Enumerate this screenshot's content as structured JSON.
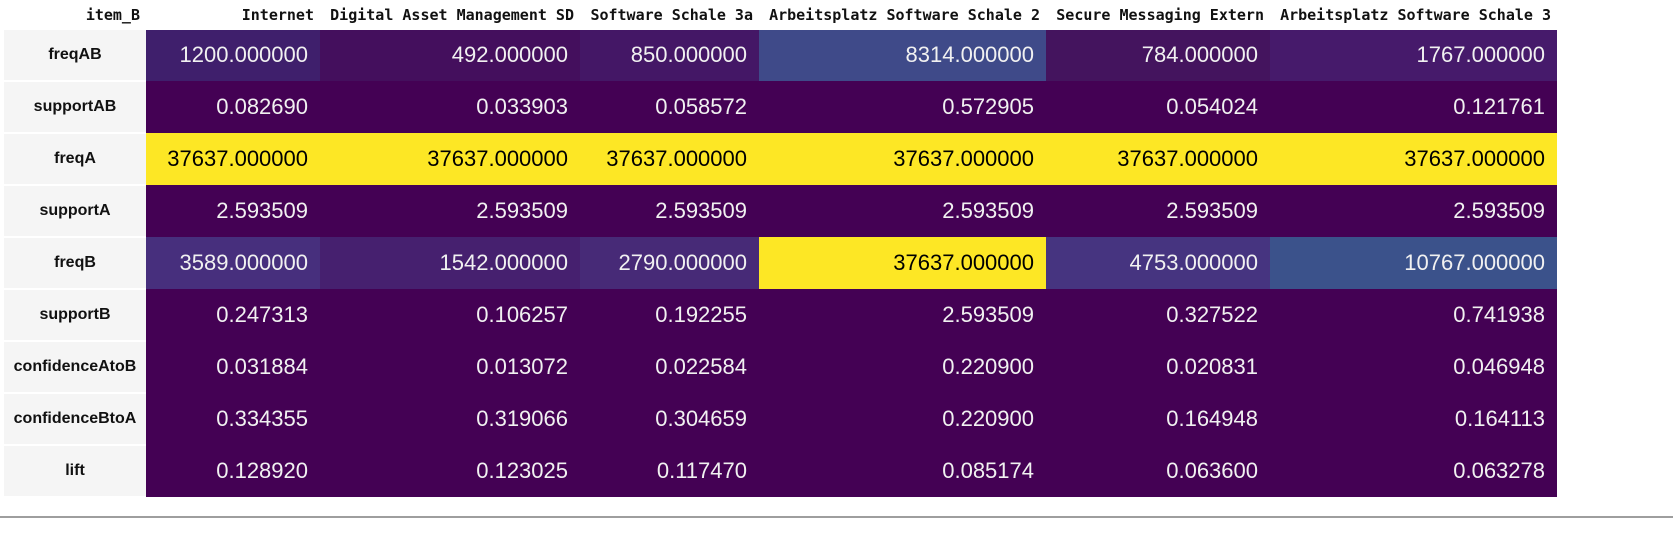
{
  "table": {
    "index_header": "item_B",
    "columns": [
      "Internet",
      "Digital Asset Management SD",
      "Software Schale 3a",
      "Arbeitsplatz Software Schale 2",
      "Secure Messaging Extern",
      "Arbeitsplatz Software Schale 3"
    ],
    "rows": [
      {
        "label": "freqAB",
        "cells": [
          {
            "text": "1200.000000",
            "bg": "#3f1f6c",
            "fg": "#f1f1f1"
          },
          {
            "text": "492.000000",
            "bg": "#440f5d",
            "fg": "#f1f1f1"
          },
          {
            "text": "850.000000",
            "bg": "#441766",
            "fg": "#f1f1f1"
          },
          {
            "text": "8314.000000",
            "bg": "#3f4a89",
            "fg": "#f1f1f1"
          },
          {
            "text": "784.000000",
            "bg": "#44145e",
            "fg": "#f1f1f1"
          },
          {
            "text": "1767.000000",
            "bg": "#461a6b",
            "fg": "#f1f1f1"
          }
        ]
      },
      {
        "label": "supportAB",
        "cells": [
          {
            "text": "0.082690",
            "bg": "#440154",
            "fg": "#f1f1f1"
          },
          {
            "text": "0.033903",
            "bg": "#440154",
            "fg": "#f1f1f1"
          },
          {
            "text": "0.058572",
            "bg": "#440154",
            "fg": "#f1f1f1"
          },
          {
            "text": "0.572905",
            "bg": "#440154",
            "fg": "#f1f1f1"
          },
          {
            "text": "0.054024",
            "bg": "#440154",
            "fg": "#f1f1f1"
          },
          {
            "text": "0.121761",
            "bg": "#440154",
            "fg": "#f1f1f1"
          }
        ]
      },
      {
        "label": "freqA",
        "cells": [
          {
            "text": "37637.000000",
            "bg": "#fde725",
            "fg": "#000000"
          },
          {
            "text": "37637.000000",
            "bg": "#fde725",
            "fg": "#000000"
          },
          {
            "text": "37637.000000",
            "bg": "#fde725",
            "fg": "#000000"
          },
          {
            "text": "37637.000000",
            "bg": "#fde725",
            "fg": "#000000"
          },
          {
            "text": "37637.000000",
            "bg": "#fde725",
            "fg": "#000000"
          },
          {
            "text": "37637.000000",
            "bg": "#fde725",
            "fg": "#000000"
          }
        ]
      },
      {
        "label": "supportA",
        "cells": [
          {
            "text": "2.593509",
            "bg": "#440154",
            "fg": "#f1f1f1"
          },
          {
            "text": "2.593509",
            "bg": "#440154",
            "fg": "#f1f1f1"
          },
          {
            "text": "2.593509",
            "bg": "#440154",
            "fg": "#f1f1f1"
          },
          {
            "text": "2.593509",
            "bg": "#440154",
            "fg": "#f1f1f1"
          },
          {
            "text": "2.593509",
            "bg": "#440154",
            "fg": "#f1f1f1"
          },
          {
            "text": "2.593509",
            "bg": "#440154",
            "fg": "#f1f1f1"
          }
        ]
      },
      {
        "label": "freqB",
        "cells": [
          {
            "text": "3589.000000",
            "bg": "#472f7d",
            "fg": "#f1f1f1"
          },
          {
            "text": "1542.000000",
            "bg": "#46206f",
            "fg": "#f1f1f1"
          },
          {
            "text": "2790.000000",
            "bg": "#472a77",
            "fg": "#f1f1f1"
          },
          {
            "text": "37637.000000",
            "bg": "#fde725",
            "fg": "#000000"
          },
          {
            "text": "4753.000000",
            "bg": "#463480",
            "fg": "#f1f1f1"
          },
          {
            "text": "10767.000000",
            "bg": "#3b528b",
            "fg": "#f1f1f1"
          }
        ]
      },
      {
        "label": "supportB",
        "cells": [
          {
            "text": "0.247313",
            "bg": "#440154",
            "fg": "#f1f1f1"
          },
          {
            "text": "0.106257",
            "bg": "#440154",
            "fg": "#f1f1f1"
          },
          {
            "text": "0.192255",
            "bg": "#440154",
            "fg": "#f1f1f1"
          },
          {
            "text": "2.593509",
            "bg": "#440154",
            "fg": "#f1f1f1"
          },
          {
            "text": "0.327522",
            "bg": "#440154",
            "fg": "#f1f1f1"
          },
          {
            "text": "0.741938",
            "bg": "#440154",
            "fg": "#f1f1f1"
          }
        ]
      },
      {
        "label": "confidenceAtoB",
        "cells": [
          {
            "text": "0.031884",
            "bg": "#440154",
            "fg": "#f1f1f1"
          },
          {
            "text": "0.013072",
            "bg": "#440154",
            "fg": "#f1f1f1"
          },
          {
            "text": "0.022584",
            "bg": "#440154",
            "fg": "#f1f1f1"
          },
          {
            "text": "0.220900",
            "bg": "#440154",
            "fg": "#f1f1f1"
          },
          {
            "text": "0.020831",
            "bg": "#440154",
            "fg": "#f1f1f1"
          },
          {
            "text": "0.046948",
            "bg": "#440154",
            "fg": "#f1f1f1"
          }
        ]
      },
      {
        "label": "confidenceBtoA",
        "cells": [
          {
            "text": "0.334355",
            "bg": "#440154",
            "fg": "#f1f1f1"
          },
          {
            "text": "0.319066",
            "bg": "#440154",
            "fg": "#f1f1f1"
          },
          {
            "text": "0.304659",
            "bg": "#440154",
            "fg": "#f1f1f1"
          },
          {
            "text": "0.220900",
            "bg": "#440154",
            "fg": "#f1f1f1"
          },
          {
            "text": "0.164948",
            "bg": "#440154",
            "fg": "#f1f1f1"
          },
          {
            "text": "0.164113",
            "bg": "#440154",
            "fg": "#f1f1f1"
          }
        ]
      },
      {
        "label": "lift",
        "cells": [
          {
            "text": "0.128920",
            "bg": "#440154",
            "fg": "#f1f1f1"
          },
          {
            "text": "0.123025",
            "bg": "#440154",
            "fg": "#f1f1f1"
          },
          {
            "text": "0.117470",
            "bg": "#440154",
            "fg": "#f1f1f1"
          },
          {
            "text": "0.085174",
            "bg": "#440154",
            "fg": "#f1f1f1"
          },
          {
            "text": "0.063600",
            "bg": "#440154",
            "fg": "#f1f1f1"
          },
          {
            "text": "0.063278",
            "bg": "#440154",
            "fg": "#f1f1f1"
          }
        ]
      }
    ]
  }
}
